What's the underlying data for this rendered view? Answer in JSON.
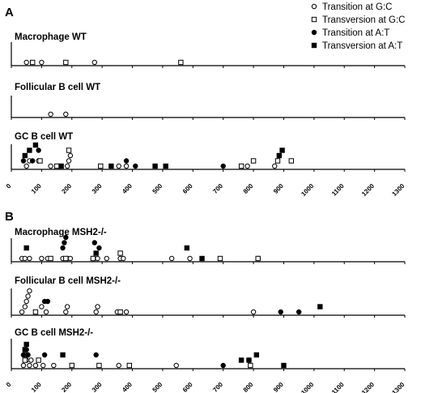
{
  "chart_data": {
    "type": "scatter",
    "legend_position": "top-right",
    "legend": [
      {
        "key": "ts_gc",
        "label": "Transition at G:C",
        "marker": "open-circle"
      },
      {
        "key": "tv_gc",
        "label": "Transversion at G:C",
        "marker": "open-square"
      },
      {
        "key": "ts_at",
        "label": "Transition at A:T",
        "marker": "filled-circle"
      },
      {
        "key": "tv_at",
        "label": "Transversion at A:T",
        "marker": "filled-square"
      }
    ],
    "xlim": [
      0,
      1300
    ],
    "x_ticks": [
      0,
      100,
      200,
      300,
      400,
      500,
      600,
      700,
      800,
      900,
      1000,
      1100,
      1200,
      1300
    ],
    "panels": [
      {
        "letter": "A",
        "tracks": [
          {
            "name": "Macrophage WT",
            "ts_gc": [
              [
                50,
                1
              ],
              [
                100,
                1
              ],
              [
                275,
                1
              ]
            ],
            "tv_gc": [
              [
                70,
                1
              ],
              [
                180,
                1
              ],
              [
                560,
                1
              ]
            ],
            "ts_at": [],
            "tv_at": []
          },
          {
            "name": "Follicular B cell WT",
            "ts_gc": [
              [
                130,
                1
              ],
              [
                180,
                1
              ]
            ],
            "tv_gc": [],
            "ts_at": [],
            "tv_at": []
          },
          {
            "name": "GC B cell WT",
            "ts_gc": [
              [
                50,
                1
              ],
              [
                60,
                2
              ],
              [
                90,
                2
              ],
              [
                130,
                1
              ],
              [
                185,
                1
              ],
              [
                190,
                2
              ],
              [
                195,
                3
              ],
              [
                355,
                1
              ],
              [
                380,
                1
              ],
              [
                780,
                1
              ],
              [
                870,
                1
              ]
            ],
            "tv_gc": [
              [
                95,
                2
              ],
              [
                150,
                1
              ],
              [
                190,
                4
              ],
              [
                295,
                1
              ],
              [
                760,
                1
              ],
              [
                800,
                2
              ],
              [
                880,
                2
              ],
              [
                925,
                2
              ]
            ],
            "ts_at": [
              [
                40,
                2
              ],
              [
                70,
                2
              ],
              [
                90,
                4
              ],
              [
                380,
                2
              ],
              [
                410,
                1
              ],
              [
                700,
                1
              ]
            ],
            "tv_at": [
              [
                45,
                3
              ],
              [
                60,
                4
              ],
              [
                80,
                5
              ],
              [
                165,
                1
              ],
              [
                330,
                1
              ],
              [
                475,
                1
              ],
              [
                510,
                1
              ],
              [
                885,
                3
              ],
              [
                895,
                4
              ]
            ]
          }
        ]
      },
      {
        "letter": "B",
        "tracks": [
          {
            "name": "Macrophage MSH2-/-",
            "ts_gc": [
              [
                35,
                1
              ],
              [
                45,
                1
              ],
              [
                60,
                1
              ],
              [
                100,
                1
              ],
              [
                120,
                1
              ],
              [
                170,
                1
              ],
              [
                185,
                1
              ],
              [
                195,
                1
              ],
              [
                270,
                1
              ],
              [
                285,
                1
              ],
              [
                315,
                1
              ],
              [
                360,
                1
              ],
              [
                370,
                1
              ],
              [
                530,
                1
              ],
              [
                590,
                1
              ],
              [
                815,
                1
              ]
            ],
            "tv_gc": [
              [
                130,
                1
              ],
              [
                180,
                1
              ],
              [
                270,
                1
              ],
              [
                360,
                2
              ],
              [
                690,
                1
              ],
              [
                815,
                1
              ]
            ],
            "ts_at": [
              [
                170,
                3
              ],
              [
                175,
                4
              ],
              [
                180,
                5
              ],
              [
                275,
                4
              ],
              [
                290,
                3
              ]
            ],
            "tv_at": [
              [
                50,
                3
              ],
              [
                280,
                2
              ],
              [
                580,
                3
              ],
              [
                630,
                1
              ]
            ]
          },
          {
            "name": "Follicular B cell MSH2-/-",
            "ts_gc": [
              [
                35,
                1
              ],
              [
                45,
                2
              ],
              [
                50,
                3
              ],
              [
                55,
                4
              ],
              [
                60,
                5
              ],
              [
                100,
                2
              ],
              [
                115,
                1
              ],
              [
                180,
                1
              ],
              [
                185,
                2
              ],
              [
                280,
                1
              ],
              [
                285,
                2
              ],
              [
                350,
                1
              ],
              [
                380,
                1
              ],
              [
                800,
                1
              ]
            ],
            "tv_gc": [
              [
                80,
                1
              ],
              [
                360,
                1
              ]
            ],
            "ts_at": [
              [
                110,
                3
              ],
              [
                120,
                3
              ],
              [
                890,
                1
              ],
              [
                950,
                1
              ]
            ],
            "tv_at": [
              [
                1020,
                2
              ]
            ]
          },
          {
            "name": "GC B cell MSH2-/-",
            "ts_gc": [
              [
                40,
                1
              ],
              [
                50,
                2
              ],
              [
                60,
                1
              ],
              [
                65,
                2
              ],
              [
                80,
                1
              ],
              [
                105,
                1
              ],
              [
                140,
                1
              ],
              [
                355,
                1
              ],
              [
                545,
                1
              ]
            ],
            "tv_gc": [
              [
                45,
                2
              ],
              [
                50,
                3
              ],
              [
                90,
                2
              ],
              [
                200,
                1
              ],
              [
                290,
                1
              ],
              [
                390,
                1
              ],
              [
                790,
                1
              ]
            ],
            "ts_at": [
              [
                40,
                3
              ],
              [
                50,
                4
              ],
              [
                55,
                3
              ],
              [
                110,
                3
              ],
              [
                280,
                3
              ],
              [
                700,
                1
              ],
              [
                785,
                2
              ]
            ],
            "tv_at": [
              [
                45,
                4
              ],
              [
                50,
                5
              ],
              [
                170,
                3
              ],
              [
                760,
                2
              ],
              [
                785,
                2
              ],
              [
                810,
                3
              ],
              [
                900,
                1
              ]
            ]
          }
        ]
      }
    ]
  }
}
